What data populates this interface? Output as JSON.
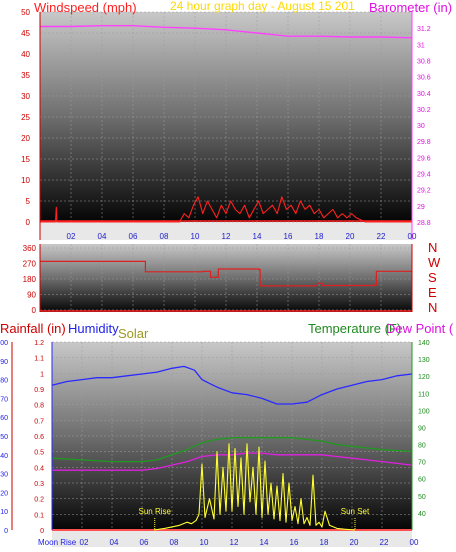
{
  "chart_data": [
    {
      "type": "line",
      "title": "24 hour graph day - August 15 201",
      "left_axis_label": "Windspeed (mph)",
      "right_axis_label": "Barometer (in)",
      "left_ylim": [
        0,
        50
      ],
      "left_ticks": [
        "0",
        "5",
        "10",
        "15",
        "20",
        "25",
        "30",
        "35",
        "40",
        "45",
        "50"
      ],
      "right_ylim": [
        28.8,
        31.4
      ],
      "right_ticks": [
        "28.8",
        "29",
        "29.2",
        "29.4",
        "29.6",
        "29.8",
        "30",
        "30.2",
        "30.4",
        "30.6",
        "30.8",
        "31",
        "31.2"
      ],
      "x_ticks": [
        "02",
        "04",
        "06",
        "08",
        "10",
        "12",
        "14",
        "16",
        "18",
        "20",
        "22",
        "00"
      ],
      "grid": true,
      "series": [
        {
          "key": "barometer",
          "color": "#ff40ff",
          "axis": "right",
          "x": [
            0,
            2,
            4,
            6,
            8,
            10,
            12,
            14,
            15,
            16,
            18,
            20,
            22,
            24
          ],
          "values": [
            31.22,
            31.22,
            31.23,
            31.23,
            31.21,
            31.2,
            31.18,
            31.14,
            31.12,
            31.1,
            31.1,
            31.09,
            31.09,
            31.08
          ]
        },
        {
          "key": "windspeed",
          "color": "#ff2020",
          "axis": "left",
          "x": [
            0,
            1.0,
            1.05,
            1.1,
            9.0,
            9.3,
            9.6,
            9.9,
            10.2,
            10.5,
            10.8,
            11.1,
            11.4,
            11.7,
            12.0,
            12.3,
            12.6,
            12.9,
            13.2,
            13.5,
            13.8,
            14.1,
            14.4,
            14.7,
            15.0,
            15.3,
            15.6,
            15.9,
            16.2,
            16.5,
            16.8,
            17.1,
            17.4,
            17.7,
            18.0,
            18.3,
            18.6,
            18.9,
            19.2,
            19.5,
            19.8,
            20.1,
            20.4,
            21.0,
            24
          ],
          "values": [
            0,
            0,
            3.5,
            0,
            0,
            2,
            1,
            4,
            6,
            2,
            5,
            3,
            1,
            4,
            2,
            5,
            3,
            2,
            4,
            1,
            3,
            5,
            2,
            3,
            4,
            2,
            6,
            3,
            4,
            2,
            5,
            3,
            4,
            2,
            3,
            1,
            2,
            3,
            1,
            2,
            1,
            2,
            1,
            0,
            0
          ]
        }
      ]
    },
    {
      "type": "line",
      "left_ylim": [
        0,
        360
      ],
      "left_ticks": [
        "0",
        "90",
        "180",
        "270",
        "360"
      ],
      "right_ticks": [
        "N",
        "W",
        "S",
        "E",
        "N"
      ],
      "grid": true,
      "series": [
        {
          "key": "wind_direction",
          "color": "#dd2020",
          "x": [
            0,
            6.7,
            6.8,
            10.5,
            11,
            11.5,
            14.1,
            14.2,
            15.7,
            17.8,
            17.9,
            18.2,
            21.6,
            21.7,
            24
          ],
          "values": [
            282,
            282,
            222,
            225,
            190,
            238,
            235,
            140,
            140,
            142,
            155,
            142,
            145,
            225,
            225
          ]
        }
      ]
    },
    {
      "type": "line",
      "left_axis_label": "Rainfall (in)",
      "humidity_label": "Humidity",
      "solar_label": "Solar",
      "temperature_label": "Temperature (F)",
      "dewpoint_label": "Dew Point (",
      "rain_ylim": [
        0,
        1.2
      ],
      "rain_ticks": [
        "0",
        "0.1",
        "0.2",
        "0.3",
        "0.4",
        "0.5",
        "0.6",
        "0.7",
        "0.8",
        "0.9",
        "1",
        "1.1",
        "1.2"
      ],
      "humidity_ylim": [
        0,
        100
      ],
      "humidity_ticks": [
        "0",
        "10",
        "20",
        "30",
        "40",
        "50",
        "60",
        "70",
        "80",
        "90",
        "100"
      ],
      "temp_ylim": [
        30,
        140
      ],
      "temp_ticks": [
        "40",
        "50",
        "60",
        "70",
        "80",
        "90",
        "100",
        "110",
        "120",
        "130",
        "140"
      ],
      "x_ticks": [
        "02",
        "04",
        "06",
        "08",
        "10",
        "12",
        "14",
        "16",
        "18",
        "20",
        "22",
        "00"
      ],
      "moon_rise_label": "Moon Rise",
      "sun_rise": {
        "x": 6.85,
        "label": "Sun Rise"
      },
      "sun_set": {
        "x": 20.2,
        "label": "Sun Set"
      },
      "grid": true,
      "series": [
        {
          "key": "humidity",
          "color": "#2a2aff",
          "axis": "humidity",
          "x": [
            0,
            1,
            2,
            3,
            4,
            5,
            6,
            7,
            8,
            8.8,
            9.5,
            10,
            10.5,
            11,
            12,
            13,
            14,
            15,
            16,
            17,
            18,
            19,
            20,
            21,
            22,
            23,
            24
          ],
          "values": [
            77,
            79,
            80,
            81,
            81,
            82,
            83,
            84,
            86,
            87,
            85,
            80,
            78,
            76,
            73,
            72,
            70,
            67,
            67,
            68,
            72,
            75,
            77,
            79,
            80,
            82,
            83
          ]
        },
        {
          "key": "temperature",
          "color": "#1f9a1f",
          "axis": "temp",
          "x": [
            0,
            2,
            4,
            6,
            7,
            8,
            9,
            10,
            11,
            12,
            13,
            14,
            15,
            16,
            17,
            18,
            19,
            20,
            21,
            22,
            24
          ],
          "values": [
            72,
            71,
            70,
            70,
            71,
            74,
            77,
            81,
            83,
            84,
            84,
            84,
            84,
            84,
            83,
            82,
            80,
            79,
            78,
            77,
            76
          ]
        },
        {
          "key": "dew_point",
          "color": "#e020e0",
          "axis": "temp",
          "x": [
            0,
            2,
            4,
            6,
            7,
            8,
            9,
            10,
            11,
            12,
            13,
            14,
            15,
            16,
            17,
            18,
            19,
            20,
            21,
            22,
            24
          ],
          "values": [
            65,
            65,
            65,
            65,
            66,
            68,
            70,
            73,
            74,
            74,
            75,
            75,
            74,
            74,
            74,
            74,
            73,
            72,
            71,
            70,
            68
          ]
        },
        {
          "key": "rainfall",
          "color": "#ff5050",
          "axis": "rain",
          "x": [
            0,
            24
          ],
          "values": [
            0,
            0
          ]
        },
        {
          "key": "solar",
          "color": "#ffff30",
          "axis": "rain",
          "x": [
            6.8,
            7.5,
            8.0,
            8.5,
            9.0,
            9.3,
            9.6,
            9.8,
            10.0,
            10.2,
            10.5,
            10.8,
            11.0,
            11.2,
            11.4,
            11.6,
            11.8,
            12.0,
            12.2,
            12.4,
            12.6,
            12.8,
            13.0,
            13.2,
            13.4,
            13.6,
            13.8,
            14.0,
            14.2,
            14.4,
            14.6,
            14.8,
            15.0,
            15.2,
            15.4,
            15.6,
            15.8,
            16.0,
            16.2,
            16.4,
            16.6,
            16.8,
            17.0,
            17.2,
            17.4,
            17.6,
            17.8,
            18.0,
            18.2,
            18.5,
            19.0,
            19.5,
            20.2
          ],
          "values": [
            0.0,
            0.01,
            0.02,
            0.03,
            0.05,
            0.04,
            0.06,
            0.1,
            0.42,
            0.08,
            0.2,
            0.07,
            0.5,
            0.1,
            0.4,
            0.12,
            0.55,
            0.12,
            0.52,
            0.15,
            0.46,
            0.1,
            0.55,
            0.18,
            0.4,
            0.1,
            0.53,
            0.08,
            0.44,
            0.1,
            0.3,
            0.07,
            0.28,
            0.06,
            0.36,
            0.05,
            0.3,
            0.06,
            0.15,
            0.04,
            0.2,
            0.04,
            0.08,
            0.03,
            0.35,
            0.03,
            0.05,
            0.02,
            0.12,
            0.03,
            0.01,
            0.005,
            0.0
          ]
        }
      ]
    }
  ]
}
